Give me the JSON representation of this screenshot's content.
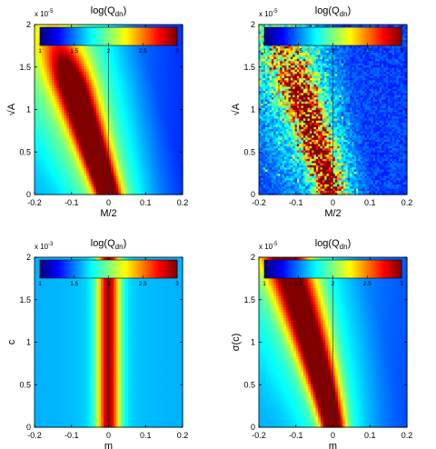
{
  "chart_data": [
    {
      "type": "heatmap",
      "title": "log(Q_dn)",
      "xlabel": "M/2",
      "ylabel": "√A",
      "exponent_label": "x 10^-5",
      "xlim": [
        -0.2,
        0.2
      ],
      "ylim": [
        0,
        2
      ],
      "xticks": [
        "-0.2",
        "-0.1",
        "0",
        "0.1",
        "0.2"
      ],
      "yticks": [
        "0",
        "0.5",
        "1",
        "1.5",
        "2"
      ],
      "colorbar": {
        "range": [
          1,
          3
        ],
        "ticks": [
          "1",
          "1.5",
          "2",
          "2.5",
          "3"
        ]
      },
      "pattern": "diagonal-ridge-smooth"
    },
    {
      "type": "heatmap",
      "title": "log(Q_dn)",
      "xlabel": "M/2",
      "ylabel": "√A",
      "exponent_label": "x 10^-5",
      "xlim": [
        -0.2,
        0.2
      ],
      "ylim": [
        0,
        2
      ],
      "xticks": [
        "-0.2",
        "-0.1",
        "0",
        "0.1",
        "0.2"
      ],
      "yticks": [
        "0",
        "0.5",
        "1",
        "1.5",
        "2"
      ],
      "colorbar": {
        "range": [
          1,
          3
        ],
        "ticks": [
          "1",
          "1.5",
          "2",
          "2.5",
          "3"
        ]
      },
      "pattern": "diagonal-ridge-noisy"
    },
    {
      "type": "heatmap",
      "title": "log(Q_dn)",
      "xlabel": "m",
      "ylabel": "c",
      "exponent_label": "x 10^-3",
      "xlim": [
        -0.2,
        0.2
      ],
      "ylim": [
        0,
        2
      ],
      "xticks": [
        "-0.2",
        "-0.1",
        "0",
        "0.1",
        "0.2"
      ],
      "yticks": [
        "0",
        "0.5",
        "1",
        "1.5",
        "2"
      ],
      "colorbar": {
        "range": [
          1,
          3
        ],
        "ticks": [
          "1",
          "1.5",
          "2",
          "2.5",
          "3"
        ]
      },
      "pattern": "vertical-band"
    },
    {
      "type": "heatmap",
      "title": "log(Q_dn)",
      "xlabel": "m",
      "ylabel": "σ(c)",
      "exponent_label": "x 10^-5",
      "xlim": [
        -0.2,
        0.2
      ],
      "ylim": [
        0,
        2
      ],
      "xticks": [
        "-0.2",
        "-0.1",
        "0",
        "0.1",
        "0.2"
      ],
      "yticks": [
        "0",
        "0.5",
        "1",
        "1.5",
        "2"
      ],
      "colorbar": {
        "range": [
          1,
          3
        ],
        "ticks": [
          "1",
          "1.5",
          "2",
          "2.5",
          "3"
        ]
      },
      "pattern": "curved-ridge"
    }
  ]
}
